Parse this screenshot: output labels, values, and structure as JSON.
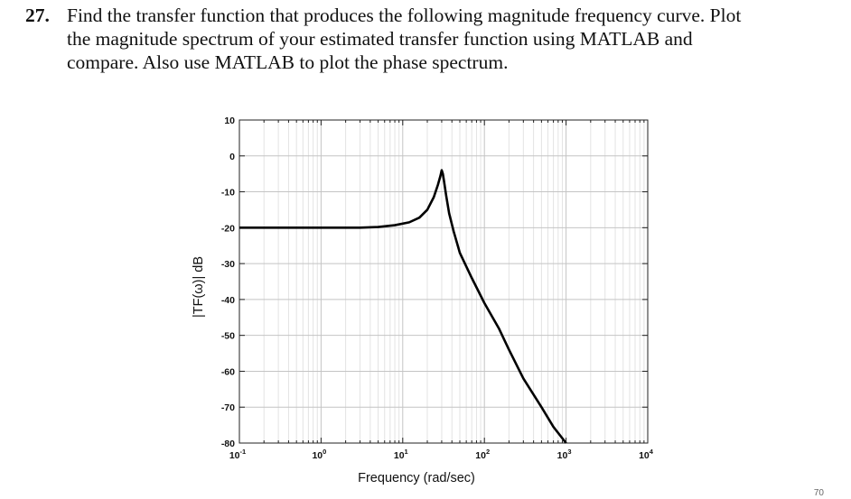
{
  "problem": {
    "number": "27.",
    "line1": "Find the transfer function that produces the following magnitude frequency curve. Plot",
    "line2": "the magnitude spectrum of your estimated transfer function using MATLAB and",
    "line3": "compare. Also use MATLAB to plot the phase spectrum."
  },
  "page_number": "70",
  "chart_data": {
    "type": "line",
    "title": "",
    "xlabel": "Frequency (rad/sec)",
    "ylabel": "|TF(ω)| dB",
    "x_scale": "log",
    "xlim": [
      0.1,
      10000
    ],
    "ylim": [
      -80,
      10
    ],
    "x_ticks": [
      {
        "base": "10",
        "exp": "-1",
        "value": 0.1
      },
      {
        "base": "10",
        "exp": "0",
        "value": 1
      },
      {
        "base": "10",
        "exp": "1",
        "value": 10
      },
      {
        "base": "10",
        "exp": "2",
        "value": 100
      },
      {
        "base": "10",
        "exp": "3",
        "value": 1000
      },
      {
        "base": "10",
        "exp": "4",
        "value": 10000
      }
    ],
    "y_ticks": [
      "10",
      "0",
      "-10",
      "-20",
      "-30",
      "-40",
      "-50",
      "-60",
      "-70",
      "-80"
    ],
    "grid": true,
    "series": [
      {
        "name": "",
        "x": [
          0.1,
          0.3,
          1,
          3,
          5,
          8,
          12,
          16,
          20,
          24,
          27,
          29,
          30,
          31,
          32,
          34,
          37,
          42,
          50,
          70,
          100,
          150,
          200,
          300,
          500,
          700,
          1000
        ],
        "y": [
          -20,
          -20,
          -20,
          -20,
          -19.8,
          -19.3,
          -18.5,
          -17.2,
          -15,
          -11.5,
          -8,
          -5.5,
          -4,
          -5,
          -7,
          -11,
          -16,
          -21,
          -27,
          -34,
          -41,
          -48,
          -54,
          -62,
          -70,
          -75.5,
          -80
        ]
      }
    ]
  }
}
